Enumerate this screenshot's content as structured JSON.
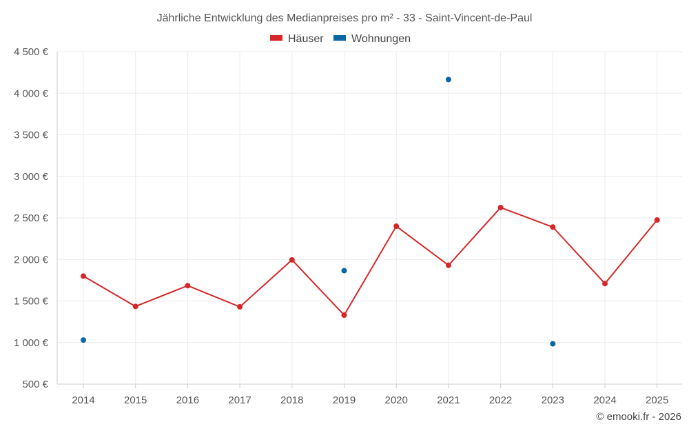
{
  "chart_data": {
    "type": "line",
    "title": "Jährliche Entwicklung des Medianpreises pro m² - 33 - Saint-Vincent-de-Paul",
    "categories": [
      "2014",
      "2015",
      "2016",
      "2017",
      "2018",
      "2019",
      "2020",
      "2021",
      "2022",
      "2023",
      "2024",
      "2025"
    ],
    "series": [
      {
        "name": "Häuser",
        "color": "#d62728",
        "mode": "lines+markers",
        "values": [
          1800,
          1435,
          1685,
          1430,
          1995,
          1330,
          2400,
          1930,
          2625,
          2390,
          1710,
          2475
        ]
      },
      {
        "name": "Wohnungen",
        "color": "#0b66a6",
        "mode": "markers",
        "values": [
          1030,
          null,
          null,
          null,
          null,
          1865,
          null,
          4165,
          null,
          985,
          null,
          null
        ]
      }
    ],
    "yticks": [
      "500 €",
      "1 000 €",
      "1 500 €",
      "2 000 €",
      "2 500 €",
      "3 000 €",
      "3 500 €",
      "4 000 €",
      "4 500 €"
    ],
    "ylim": [
      500,
      4500
    ],
    "legend_position": "top-center",
    "grid": true
  },
  "credit": "© emooki.fr - 2026"
}
